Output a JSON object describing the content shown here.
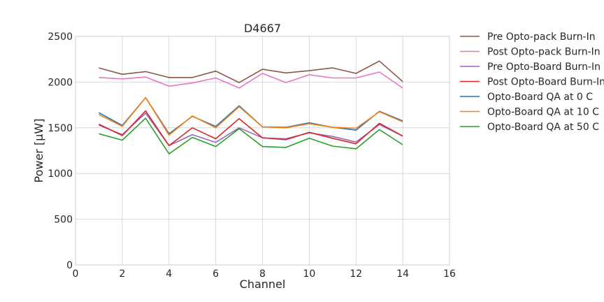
{
  "chart_data": {
    "type": "line",
    "title": "D4667",
    "xlabel": "Channel",
    "ylabel": "Power [μW]",
    "xlim": [
      0,
      16
    ],
    "ylim": [
      0,
      2500
    ],
    "xticks": [
      0,
      2,
      4,
      6,
      8,
      10,
      12,
      14,
      16
    ],
    "yticks": [
      0,
      500,
      1000,
      1500,
      2000,
      2500
    ],
    "grid": true,
    "legend_position": "outside-right-top",
    "x": [
      1,
      2,
      3,
      4,
      5,
      6,
      7,
      8,
      9,
      10,
      11,
      12,
      13,
      14
    ],
    "series": [
      {
        "name": "Pre Opto-pack Burn-In",
        "color": "#8c564b",
        "values": [
          2155,
          2085,
          2115,
          2050,
          2050,
          2120,
          1995,
          2140,
          2100,
          2125,
          2155,
          2095,
          2230,
          2005
        ]
      },
      {
        "name": "Post Opto-pack Burn-In",
        "color": "#e377c2",
        "values": [
          2050,
          2035,
          2055,
          1955,
          1990,
          2045,
          1935,
          2095,
          1995,
          2080,
          2045,
          2045,
          2110,
          1935
        ]
      },
      {
        "name": "Pre Opto-Board Burn-In",
        "color": "#9467bd",
        "values": [
          1530,
          1425,
          1660,
          1305,
          1425,
          1340,
          1500,
          1390,
          1380,
          1445,
          1405,
          1345,
          1535,
          1410
        ]
      },
      {
        "name": "Post Opto-Board Burn-In",
        "color": "#d62728",
        "values": [
          1540,
          1415,
          1685,
          1305,
          1500,
          1380,
          1600,
          1390,
          1370,
          1450,
          1385,
          1325,
          1550,
          1410
        ]
      },
      {
        "name": "Opto-Board QA at 0 C",
        "color": "#1f77b4",
        "values": [
          1665,
          1525,
          1830,
          1435,
          1625,
          1515,
          1740,
          1510,
          1505,
          1555,
          1505,
          1475,
          1680,
          1575
        ]
      },
      {
        "name": "Opto-Board QA at 10 C",
        "color": "#ff7f0e",
        "values": [
          1645,
          1515,
          1830,
          1420,
          1630,
          1500,
          1730,
          1510,
          1500,
          1545,
          1505,
          1495,
          1675,
          1565
        ]
      },
      {
        "name": "Opto-Board QA at 50 C",
        "color": "#2ca02c",
        "values": [
          1435,
          1365,
          1605,
          1215,
          1395,
          1295,
          1490,
          1295,
          1285,
          1385,
          1300,
          1270,
          1480,
          1315
        ]
      }
    ]
  }
}
